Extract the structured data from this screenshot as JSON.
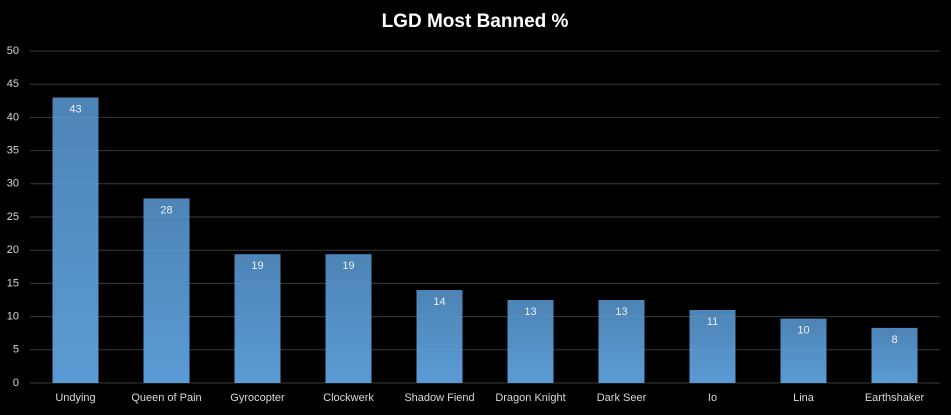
{
  "chart_data": {
    "type": "bar",
    "title": "LGD Most Banned %",
    "categories": [
      "Undying",
      "Queen of Pain",
      "Gyrocopter",
      "Clockwerk",
      "Shadow Fiend",
      "Dragon Knight",
      "Dark Seer",
      "Io",
      "Lina",
      "Earthshaker"
    ],
    "values": [
      43,
      27.8,
      19.4,
      19.4,
      14,
      12.5,
      12.5,
      11,
      9.7,
      8.3
    ],
    "value_labels": [
      "43",
      "28",
      "19",
      "19",
      "14",
      "13",
      "13",
      "11",
      "10",
      "8"
    ],
    "color": "#5b9bd5",
    "ylim": [
      0,
      50
    ],
    "yticks": [
      0,
      5,
      10,
      15,
      20,
      25,
      30,
      35,
      40,
      45,
      50
    ],
    "grid": true
  }
}
